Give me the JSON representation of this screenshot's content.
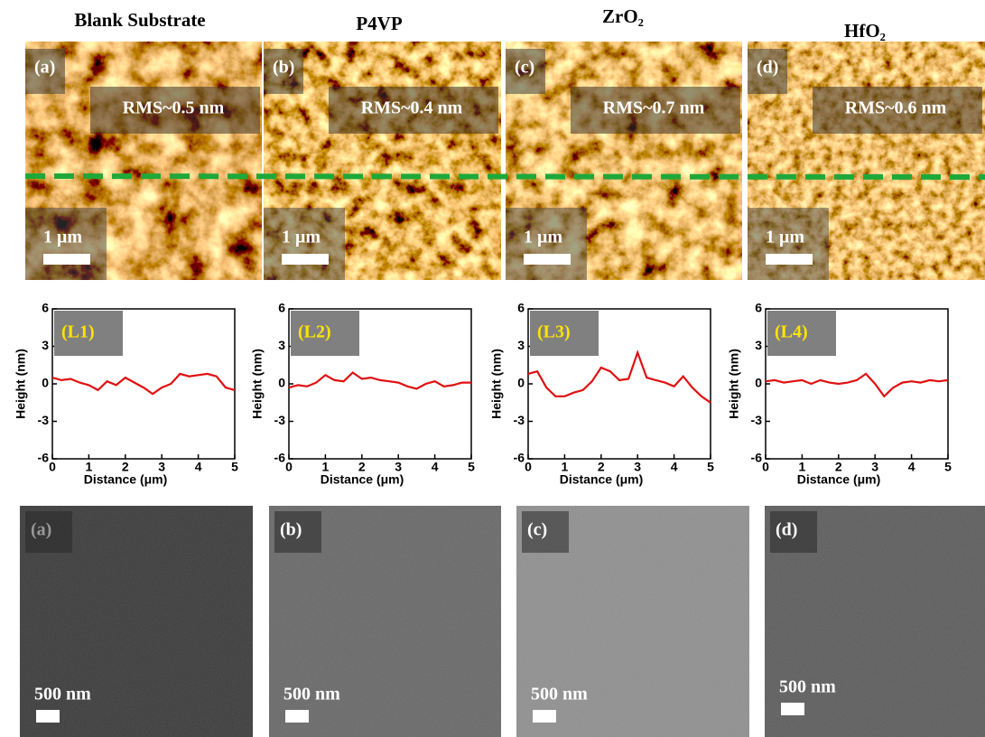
{
  "afm_panels": [
    {
      "title": "Blank Substrate",
      "label": "(a)",
      "rms": "RMS~0.5 nm",
      "scale": "1 μm"
    },
    {
      "title": "P4VP",
      "label": "(b)",
      "rms": "RMS~0.4 nm",
      "scale": "1 μm"
    },
    {
      "title": "ZrO₂",
      "label": "(c)",
      "rms": "RMS~0.7 nm",
      "scale": "1 μm"
    },
    {
      "title": "HfO₂",
      "label": "(d)",
      "rms": "RMS~0.6 nm",
      "scale": "1 μm"
    }
  ],
  "chart_data": [
    {
      "type": "line",
      "panel_label": "(L1)",
      "x_label": "Distance (μm)",
      "y_label": "Height (nm)",
      "x": [
        0,
        0.25,
        0.5,
        0.75,
        1,
        1.25,
        1.5,
        1.75,
        2,
        2.25,
        2.5,
        2.75,
        3,
        3.25,
        3.5,
        3.75,
        4,
        4.25,
        4.5,
        4.75,
        5
      ],
      "series": [
        {
          "color": "#e01010",
          "values": [
            0.5,
            0.3,
            0.4,
            0.1,
            -0.1,
            -0.5,
            0.2,
            -0.1,
            0.5,
            0.1,
            -0.3,
            -0.8,
            -0.3,
            0.0,
            0.8,
            0.6,
            0.7,
            0.8,
            0.6,
            -0.3,
            -0.5
          ]
        }
      ],
      "xlim": [
        0,
        5
      ],
      "ylim": [
        -6,
        6
      ],
      "xticks": [
        0,
        1,
        2,
        3,
        4,
        5
      ],
      "yticks": [
        -6,
        -3,
        0,
        3,
        6
      ]
    },
    {
      "type": "line",
      "panel_label": "(L2)",
      "x_label": "Distance (μm)",
      "y_label": "Height (nm)",
      "x": [
        0,
        0.25,
        0.5,
        0.75,
        1,
        1.25,
        1.5,
        1.75,
        2,
        2.25,
        2.5,
        2.75,
        3,
        3.25,
        3.5,
        3.75,
        4,
        4.25,
        4.5,
        4.75,
        5
      ],
      "series": [
        {
          "color": "#e01010",
          "values": [
            -0.3,
            -0.1,
            -0.2,
            0.1,
            0.7,
            0.3,
            0.2,
            0.9,
            0.4,
            0.5,
            0.3,
            0.2,
            0.1,
            -0.2,
            -0.4,
            0.0,
            0.2,
            -0.2,
            -0.1,
            0.1,
            0.1
          ]
        }
      ],
      "xlim": [
        0,
        5
      ],
      "ylim": [
        -6,
        6
      ],
      "xticks": [
        0,
        1,
        2,
        3,
        4,
        5
      ],
      "yticks": [
        -6,
        -3,
        0,
        3,
        6
      ]
    },
    {
      "type": "line",
      "panel_label": "(L3)",
      "x_label": "Distance (μm)",
      "y_label": "Height (nm)",
      "x": [
        0,
        0.25,
        0.5,
        0.75,
        1,
        1.25,
        1.5,
        1.75,
        2,
        2.25,
        2.5,
        2.75,
        3,
        3.25,
        3.5,
        3.75,
        4,
        4.25,
        4.5,
        4.75,
        5
      ],
      "series": [
        {
          "color": "#e01010",
          "values": [
            0.8,
            1.0,
            -0.3,
            -1.0,
            -1.0,
            -0.7,
            -0.5,
            0.2,
            1.3,
            1.0,
            0.3,
            0.4,
            2.5,
            0.5,
            0.3,
            0.1,
            -0.2,
            0.6,
            -0.3,
            -1.0,
            -1.5
          ]
        }
      ],
      "xlim": [
        0,
        5
      ],
      "ylim": [
        -6,
        6
      ],
      "xticks": [
        0,
        1,
        2,
        3,
        4,
        5
      ],
      "yticks": [
        -6,
        -3,
        0,
        3,
        6
      ]
    },
    {
      "type": "line",
      "panel_label": "(L4)",
      "x_label": "Distance (μm)",
      "y_label": "Height (nm)",
      "x": [
        0,
        0.25,
        0.5,
        0.75,
        1,
        1.25,
        1.5,
        1.75,
        2,
        2.25,
        2.5,
        2.75,
        3,
        3.25,
        3.5,
        3.75,
        4,
        4.25,
        4.5,
        4.75,
        5
      ],
      "series": [
        {
          "color": "#e01010",
          "values": [
            0.2,
            0.3,
            0.1,
            0.2,
            0.3,
            0.0,
            0.3,
            0.1,
            0.0,
            0.1,
            0.3,
            0.8,
            0.0,
            -1.0,
            -0.3,
            0.1,
            0.2,
            0.1,
            0.3,
            0.2,
            0.3
          ]
        }
      ],
      "xlim": [
        0,
        5
      ],
      "ylim": [
        -6,
        6
      ],
      "xticks": [
        0,
        1,
        2,
        3,
        4,
        5
      ],
      "yticks": [
        -6,
        -3,
        0,
        3,
        6
      ]
    }
  ],
  "sem_panels": [
    {
      "label": "(a)",
      "scale": "500 nm"
    },
    {
      "label": "(b)",
      "scale": "500 nm"
    },
    {
      "label": "(c)",
      "scale": "500 nm"
    },
    {
      "label": "(d)",
      "scale": "500 nm"
    }
  ]
}
